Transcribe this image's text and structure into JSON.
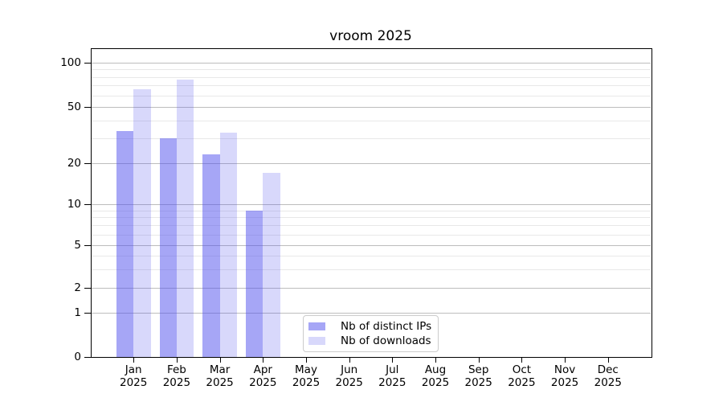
{
  "title": "vroom 2025",
  "chart_data": {
    "type": "bar",
    "title": "vroom 2025",
    "categories": [
      "Jan 2025",
      "Feb 2025",
      "Mar 2025",
      "Apr 2025",
      "May 2025",
      "Jun 2025",
      "Jul 2025",
      "Aug 2025",
      "Sep 2025",
      "Oct 2025",
      "Nov 2025",
      "Dec 2025"
    ],
    "month_labels": [
      "Jan",
      "Feb",
      "Mar",
      "Apr",
      "May",
      "Jun",
      "Jul",
      "Aug",
      "Sep",
      "Oct",
      "Nov",
      "Dec"
    ],
    "year_label": "2025",
    "series": [
      {
        "name": "Nb of distinct IPs",
        "color_key": "bar_distinct_ips",
        "values": [
          34,
          30,
          23,
          9,
          null,
          null,
          null,
          null,
          null,
          null,
          null,
          null
        ]
      },
      {
        "name": "Nb of downloads",
        "color_key": "bar_downloads",
        "values": [
          66,
          77,
          33,
          17,
          null,
          null,
          null,
          null,
          null,
          null,
          null,
          null
        ]
      }
    ],
    "y_axis": {
      "scale": "log-like with 0 baseline",
      "major_ticks": [
        0,
        1,
        2,
        5,
        10,
        20,
        50,
        100
      ],
      "minor_gridlines": [
        3,
        4,
        6,
        7,
        8,
        9,
        30,
        40,
        60,
        70,
        80,
        90
      ],
      "range": [
        0,
        125
      ]
    },
    "xlabel": "",
    "ylabel": "",
    "grid": "horizontal major and minor gridlines",
    "legend_position": "inside lower-center"
  },
  "legend": {
    "items": [
      {
        "label": "Nb of distinct IPs",
        "color_key": "bar_distinct_ips"
      },
      {
        "label": "Nb of downloads",
        "color_key": "bar_downloads"
      }
    ]
  },
  "colors": {
    "bar_distinct_ips": "rgba(78,78,238,0.5)",
    "bar_downloads": "rgba(78,78,238,0.22)",
    "bar_distinct_ips_flat": "#a6a6f6",
    "bar_downloads_flat": "#d8d8fb",
    "grid_major": "#bdbdbd",
    "grid_minor": "#e8e8e8",
    "axis": "#000000",
    "legend_border": "#cccccc",
    "background": "#ffffff",
    "text": "#000000"
  }
}
